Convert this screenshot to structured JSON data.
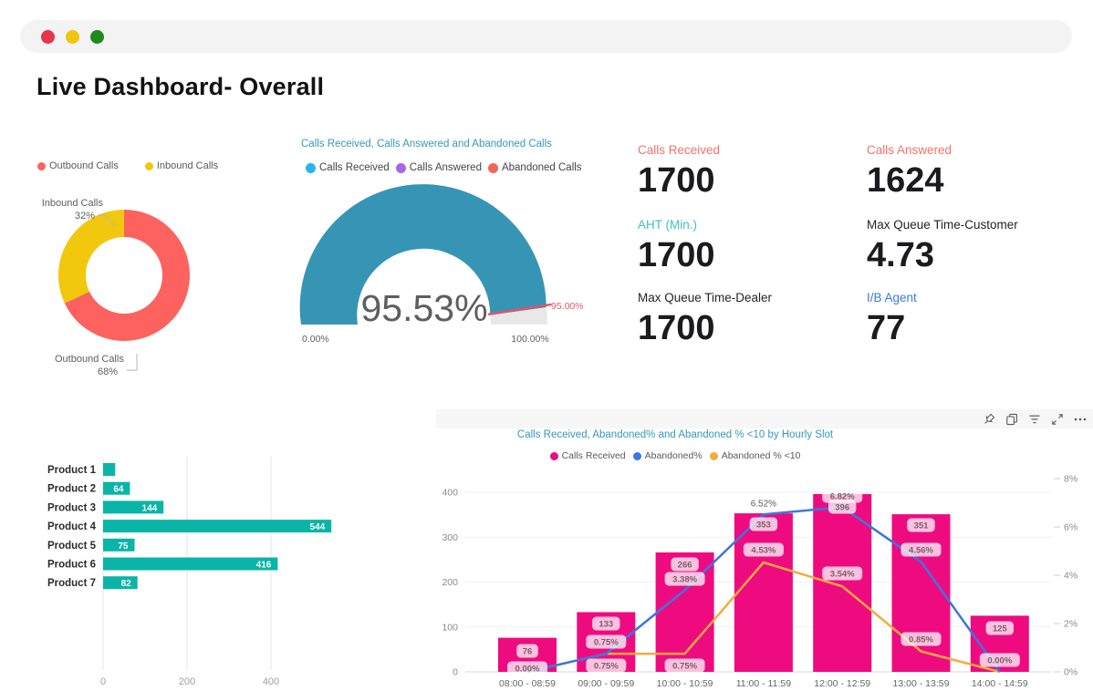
{
  "page": {
    "title": "Live Dashboard- Overall"
  },
  "ui": {
    "traffic_lights": [
      "#E8334D",
      "#F2C40E",
      "#1F8A1F"
    ]
  },
  "call_type_donut": {
    "type": "pie",
    "legend": [
      {
        "label": "Outbound Calls",
        "color": "#FD625E"
      },
      {
        "label": "Inbound Calls",
        "color": "#F2C80F"
      }
    ],
    "slices": [
      {
        "label": "Outbound Calls",
        "pct": 68,
        "color": "#FD625E"
      },
      {
        "label": "Inbound Calls",
        "pct": 32,
        "color": "#F2C80F"
      }
    ],
    "callouts": [
      {
        "name": "Inbound Calls",
        "pct_label": "32%"
      },
      {
        "name": "Outbound Calls",
        "pct_label": "68%"
      }
    ]
  },
  "gauge": {
    "type": "gauge",
    "title": "Calls Received, Calls Answered and Abandoned Calls",
    "legend": [
      {
        "label": "Calls Received",
        "color": "#29B5E8"
      },
      {
        "label": "Calls Answered",
        "color": "#A767E5"
      },
      {
        "label": "Abandoned Calls",
        "color": "#F4645C"
      }
    ],
    "value": 95.53,
    "value_label": "95.53%",
    "min_label": "0.00%",
    "max_label": "100.00%",
    "target": 95,
    "target_label": "95.00%",
    "fill_color": "#3695B4",
    "track_color": "#E8E8E8",
    "target_color": "#E0536B"
  },
  "kpis": [
    {
      "label": "Calls Received",
      "value": "1700",
      "label_color": "#F4716B"
    },
    {
      "label": "Calls Answered",
      "value": "1624",
      "label_color": "#F4716B"
    },
    {
      "label": "AHT (Min.)",
      "value": "1700",
      "label_color": "#3EC3B4"
    },
    {
      "label": "Max Queue Time-Customer",
      "value": "4.73",
      "label_color": "#252423"
    },
    {
      "label": "Max Queue Time-Dealer",
      "value": "1700",
      "label_color": "#252423"
    },
    {
      "label": "I/B Agent",
      "value": "77",
      "label_color": "#3A7BD5"
    }
  ],
  "product_chart": {
    "type": "bar",
    "categories": [
      "Product 1",
      "Product 2",
      "Product 3",
      "Product 4",
      "Product 5",
      "Product 6",
      "Product 7"
    ],
    "values": [
      29,
      64,
      144,
      544,
      75,
      416,
      82
    ],
    "value_labels": [
      "",
      "64",
      "144",
      "544",
      "75",
      "416",
      "82"
    ],
    "x_ticks": [
      "0",
      "200",
      "400"
    ],
    "x_tick_values": [
      0,
      200,
      400
    ],
    "bar_color": "#0AB5A7"
  },
  "hourly_chart": {
    "type": "combo",
    "title": "Calls Received, Abandoned% and Abandoned % <10 by Hourly Slot",
    "legend": [
      {
        "label": "Calls Received",
        "color": "#EE0B80"
      },
      {
        "label": "Abandoned%",
        "color": "#3D76DB"
      },
      {
        "label": "Abandoned % <10",
        "color": "#F2AC3C"
      }
    ],
    "categories": [
      "08:00 - 08:59",
      "09:00 - 09:59",
      "10:00 - 10:59",
      "11:00 - 11:59",
      "12:00 - 12:59",
      "13:00 - 13:59",
      "14:00 - 14:59"
    ],
    "series": [
      {
        "name": "Calls Received",
        "type": "bar",
        "color": "#EE0B80",
        "values": [
          76,
          133,
          266,
          353,
          396,
          351,
          125
        ],
        "labels": [
          "76",
          "133",
          "266",
          "353",
          "396",
          "351",
          "125"
        ]
      },
      {
        "name": "Abandoned%",
        "type": "line",
        "color": "#3D76DB",
        "values": [
          0.0,
          0.75,
          3.38,
          6.52,
          6.82,
          4.56,
          0.0
        ],
        "labels": [
          "0.00%",
          "0.75%",
          "3.38%",
          "6.52%",
          "6.82%",
          "4.56%",
          "0.00%"
        ]
      },
      {
        "name": "Abandoned % <10",
        "type": "line",
        "color": "#F2AC3C",
        "values": [
          0.0,
          0.75,
          0.75,
          4.53,
          3.54,
          0.85,
          0.0
        ],
        "labels": [
          null,
          "0.75%",
          "0.75%",
          "4.53%",
          "3.54%",
          "0.85%",
          null
        ]
      }
    ],
    "y_left": {
      "ticks": [
        "0",
        "100",
        "200",
        "300",
        "400"
      ],
      "max": 400
    },
    "y_right": {
      "ticks": [
        "0%",
        "2%",
        "4%",
        "6%",
        "8%"
      ],
      "max": 8
    }
  },
  "toolbar": {
    "icons": [
      "pin",
      "copy",
      "filter",
      "focus-mode",
      "more-options"
    ]
  }
}
